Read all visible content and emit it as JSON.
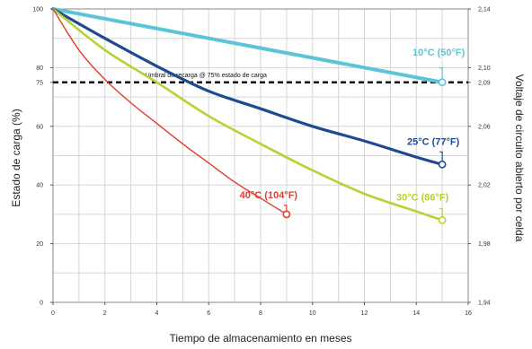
{
  "chart_data": {
    "type": "line",
    "title": "",
    "xlabel": "Tiempo de almacenamiento en meses",
    "ylabel": "Estado de carga (%)",
    "y2label": "Voltaje de circuito abierto por celda",
    "xlim": [
      0,
      16
    ],
    "ylim": [
      0,
      100
    ],
    "y2lim": [
      1.94,
      2.14
    ],
    "x_ticks": [
      "0",
      "2",
      "4",
      "6",
      "8",
      "10",
      "12",
      "14",
      "16"
    ],
    "y_ticks": [
      "0",
      "20",
      "40",
      "60",
      "75",
      "80",
      "100"
    ],
    "y2_ticks": [
      "1,94",
      "1,98",
      "2,02",
      "2,06",
      "2,09",
      "2,10",
      "2,14"
    ],
    "grid": true,
    "reference_line": {
      "y": 75,
      "label": "Umbral de recarga @ 75% estado de carga"
    },
    "series": [
      {
        "name": "10°C (50°F)",
        "color": "#5bc4d8",
        "x": [
          0,
          15
        ],
        "y": [
          100,
          75
        ]
      },
      {
        "name": "25°C (77°F)",
        "color": "#1f4a93",
        "x": [
          0,
          2,
          4,
          6,
          8,
          10,
          12,
          14,
          15
        ],
        "y": [
          100,
          90,
          80.5,
          72,
          66,
          60,
          55,
          49.5,
          47
        ]
      },
      {
        "name": "30°C (86°F)",
        "color": "#b5d334",
        "x": [
          0,
          2,
          4,
          6,
          8,
          10,
          12,
          14,
          15
        ],
        "y": [
          100,
          86,
          75,
          63.5,
          54,
          45,
          37,
          31,
          28
        ]
      },
      {
        "name": "40°C (104°F)",
        "color": "#e13c30",
        "x": [
          0,
          1,
          2,
          3,
          4,
          5,
          6,
          7,
          8,
          9
        ],
        "y": [
          100,
          86,
          76,
          68,
          61,
          54,
          47.5,
          41,
          35.5,
          30
        ]
      }
    ]
  }
}
